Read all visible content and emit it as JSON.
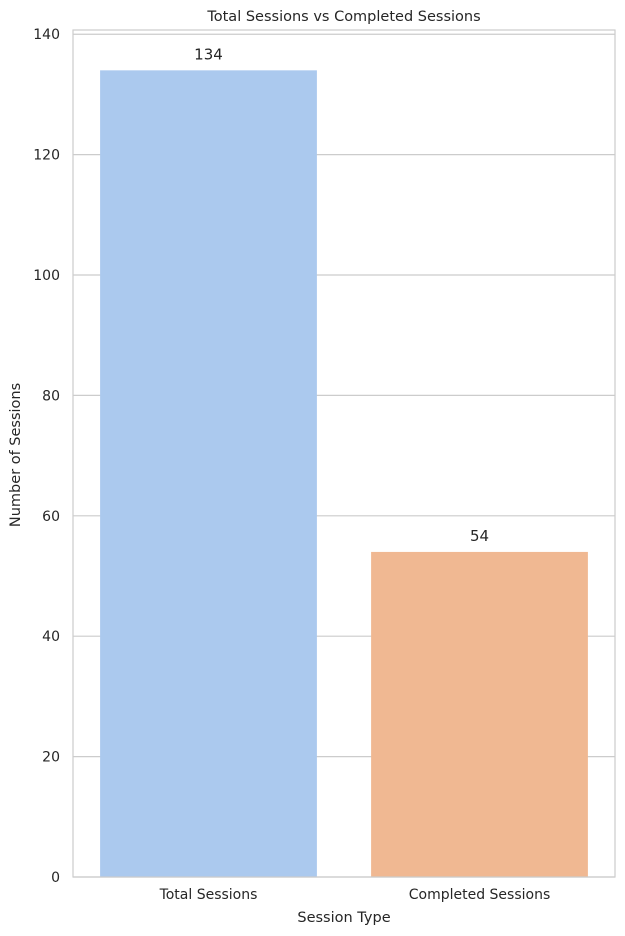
{
  "chart_data": {
    "type": "bar",
    "title": "Total Sessions vs Completed Sessions",
    "xlabel": "Session Type",
    "ylabel": "Number of Sessions",
    "categories": [
      "Total Sessions",
      "Completed Sessions"
    ],
    "values": [
      134,
      54
    ],
    "data_labels": [
      "134",
      "54"
    ],
    "colors": [
      "#abc9ee",
      "#f0b892"
    ],
    "ylim": [
      0,
      140.7
    ],
    "yticks": [
      0,
      20,
      40,
      60,
      80,
      100,
      120,
      140
    ],
    "grid": true,
    "grid_axis": "y",
    "legend": "none"
  }
}
